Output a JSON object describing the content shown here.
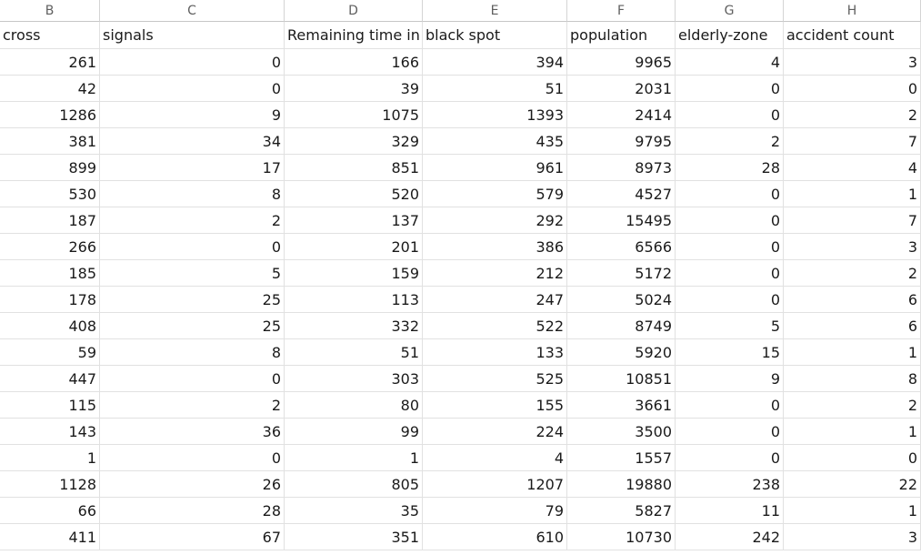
{
  "spreadsheet": {
    "columns": [
      {
        "letter": "B",
        "header": "cross"
      },
      {
        "letter": "C",
        "header": "signals"
      },
      {
        "letter": "D",
        "header": "Remaining time in"
      },
      {
        "letter": "E",
        "header": "black spot"
      },
      {
        "letter": "F",
        "header": "population"
      },
      {
        "letter": "G",
        "header": "elderly-zone"
      },
      {
        "letter": "H",
        "header": "accident count"
      }
    ],
    "rows": [
      [
        "261",
        "0",
        "166",
        "394",
        "9965",
        "4",
        "3"
      ],
      [
        "42",
        "0",
        "39",
        "51",
        "2031",
        "0",
        "0"
      ],
      [
        "1286",
        "9",
        "1075",
        "1393",
        "2414",
        "0",
        "2"
      ],
      [
        "381",
        "34",
        "329",
        "435",
        "9795",
        "2",
        "7"
      ],
      [
        "899",
        "17",
        "851",
        "961",
        "8973",
        "28",
        "4"
      ],
      [
        "530",
        "8",
        "520",
        "579",
        "4527",
        "0",
        "1"
      ],
      [
        "187",
        "2",
        "137",
        "292",
        "15495",
        "0",
        "7"
      ],
      [
        "266",
        "0",
        "201",
        "386",
        "6566",
        "0",
        "3"
      ],
      [
        "185",
        "5",
        "159",
        "212",
        "5172",
        "0",
        "2"
      ],
      [
        "178",
        "25",
        "113",
        "247",
        "5024",
        "0",
        "6"
      ],
      [
        "408",
        "25",
        "332",
        "522",
        "8749",
        "5",
        "6"
      ],
      [
        "59",
        "8",
        "51",
        "133",
        "5920",
        "15",
        "1"
      ],
      [
        "447",
        "0",
        "303",
        "525",
        "10851",
        "9",
        "8"
      ],
      [
        "115",
        "2",
        "80",
        "155",
        "3661",
        "0",
        "2"
      ],
      [
        "143",
        "36",
        "99",
        "224",
        "3500",
        "0",
        "1"
      ],
      [
        "1",
        "0",
        "1",
        "4",
        "1557",
        "0",
        "0"
      ],
      [
        "1128",
        "26",
        "805",
        "1207",
        "19880",
        "238",
        "22"
      ],
      [
        "66",
        "28",
        "35",
        "79",
        "5827",
        "11",
        "1"
      ],
      [
        "411",
        "67",
        "351",
        "610",
        "10730",
        "242",
        "3"
      ]
    ]
  }
}
